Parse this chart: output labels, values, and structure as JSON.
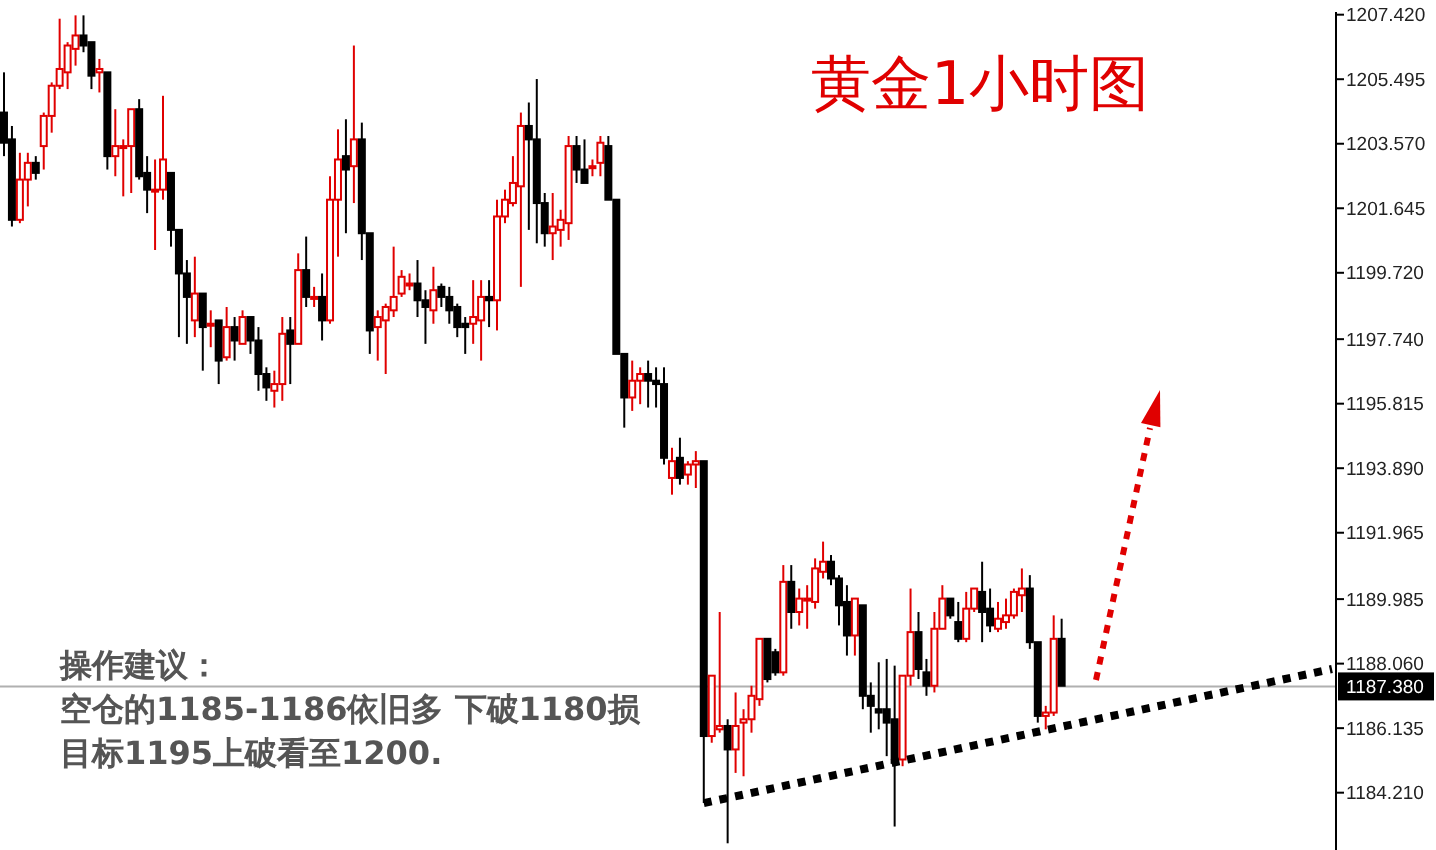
{
  "chart_data": {
    "type": "candlestick",
    "title": "黄金1小时图",
    "annotations": [
      "操作建议：",
      "空仓的1185-1186依旧多  下破1180损",
      "目标1195上破看至1200."
    ],
    "categories": [
      null,
      null,
      null,
      null,
      null,
      null,
      null,
      null,
      null,
      null,
      null,
      null,
      null,
      null,
      null,
      null,
      null,
      null,
      null,
      null,
      null,
      null,
      null,
      null,
      null,
      null,
      null,
      null,
      null,
      null,
      null,
      null,
      null,
      null,
      null,
      null,
      null,
      null,
      null,
      null,
      null,
      null,
      null,
      null,
      null,
      null,
      null,
      null,
      null,
      null,
      null,
      null,
      null,
      null,
      null,
      null,
      null,
      null,
      null,
      null,
      null,
      null,
      null,
      null,
      null,
      null,
      null,
      null,
      null,
      null,
      null,
      null,
      null,
      null,
      null,
      null,
      null,
      null,
      null,
      null,
      null,
      null,
      null,
      null,
      null,
      null,
      null,
      null,
      null,
      null,
      null,
      null,
      null,
      null,
      null,
      null,
      null,
      null,
      null,
      null,
      null,
      null,
      null,
      null,
      null,
      null,
      null,
      null,
      null,
      null,
      null,
      null,
      null,
      null,
      null,
      null,
      null,
      null,
      null,
      null,
      null,
      null,
      null,
      null,
      null,
      null,
      null,
      null,
      null,
      null,
      null,
      null,
      null,
      null,
      null,
      null,
      null,
      null,
      null,
      null,
      null,
      null,
      null,
      null,
      null,
      null,
      null,
      null,
      null,
      null,
      null,
      null,
      null,
      null,
      null,
      null,
      null,
      null,
      null,
      null,
      null,
      null,
      null,
      null,
      null,
      null,
      null,
      null
    ],
    "colors": [
      "#000000",
      "#000000",
      "#e00000",
      "#e00000",
      "#000000",
      "#e00000",
      "#e00000",
      "#e00000",
      "#e00000",
      "#e00000",
      "#000000",
      "#000000",
      "#e00000",
      "#000000",
      "#e00000",
      "#e00000",
      "#e00000",
      "#000000",
      "#000000",
      "#e00000",
      "#e00000",
      "#000000",
      "#000000",
      "#000000",
      "#e00000",
      "#000000",
      "#e00000",
      "#000000",
      "#e00000",
      "#000000",
      "#e00000",
      "#000000",
      "#000000",
      "#000000",
      "#e00000",
      "#e00000",
      "#000000",
      "#e00000",
      "#000000",
      "#e00000",
      "#000000",
      "#e00000",
      "#e00000",
      "#000000",
      "#e00000",
      "#000000",
      "#000000",
      "#e00000",
      "#e00000",
      "#e00000",
      "#e00000",
      "#e00000",
      "#000000",
      "#000000",
      "#e00000",
      "#000000",
      "#000000",
      "#000000",
      "#000000",
      "#e00000",
      "#e00000",
      "#000000",
      "#e00000",
      "#e00000",
      "#e00000",
      "#e00000",
      "#000000",
      "#000000",
      "#000000",
      "#e00000",
      "#e00000",
      "#e00000",
      "#000000",
      "#000000",
      "#e00000",
      "#e00000",
      "#000000",
      "#000000",
      "#000000",
      "#e00000",
      "#e00000",
      "#000000",
      "#000000",
      "#000000",
      "#e00000",
      "#000000",
      "#e00000",
      "#e00000",
      "#000000",
      "#e00000",
      "#e00000",
      "#000000",
      "#e00000",
      "#e00000",
      "#e00000",
      "#e00000",
      "#000000",
      "#000000",
      "#e00000",
      "#000000",
      "#e00000",
      "#e00000",
      "#e00000",
      "#e00000",
      "#000000",
      "#000000",
      "#000000",
      "#e00000",
      "#000000",
      "#000000",
      "#000000",
      "#000000",
      "#000000",
      "#e00000",
      "#e00000",
      "#000000",
      "#000000",
      "#e00000",
      "#e00000",
      "#000000",
      "#000000",
      "#e00000",
      "#e00000",
      "#000000",
      "#000000",
      "#e00000",
      "#e00000",
      "#e00000",
      "#e00000",
      "#000000",
      "#000000",
      "#e00000",
      "#e00000",
      "#000000",
      null,
      null,
      null,
      null,
      null,
      null,
      null,
      null,
      null,
      null,
      null,
      null,
      null,
      null,
      null,
      null,
      null,
      null,
      null,
      null,
      null,
      null,
      null,
      null,
      null,
      null,
      null,
      null,
      null,
      null,
      null,
      null,
      null,
      null
    ],
    "ohlc": [
      [
        1204.5,
        1205.7,
        1203.2,
        1203.6
      ],
      [
        1203.7,
        1204.1,
        1201.1,
        1201.3
      ],
      [
        1201.3,
        1203.3,
        1201.2,
        1202.5
      ],
      [
        1202.5,
        1203.3,
        1201.7,
        1203.0
      ],
      [
        1203.0,
        1203.2,
        1202.5,
        1202.7
      ],
      [
        1203.5,
        1204.5,
        1202.8,
        1204.4
      ],
      [
        1204.4,
        1205.4,
        1203.9,
        1205.3
      ],
      [
        1205.3,
        1207.3,
        1205.2,
        1205.8
      ],
      [
        1205.7,
        1206.6,
        1205.2,
        1206.5
      ],
      [
        1206.4,
        1207.4,
        1205.9,
        1206.8
      ],
      [
        1206.8,
        1207.4,
        1206.3,
        1206.5
      ],
      [
        1206.6,
        1206.6,
        1205.2,
        1205.6
      ],
      [
        1205.7,
        1206.1,
        1205.1,
        1205.8
      ],
      [
        1205.7,
        1205.7,
        1202.8,
        1203.2
      ],
      [
        1203.2,
        1204.6,
        1202.6,
        1203.5
      ],
      [
        1203.5,
        1203.7,
        1202.0,
        1203.5
      ],
      [
        1203.5,
        1204.6,
        1202.1,
        1204.6
      ],
      [
        1204.6,
        1204.9,
        1202.5,
        1202.6
      ],
      [
        1202.7,
        1203.2,
        1201.5,
        1202.2
      ],
      [
        1202.2,
        1203.1,
        1200.4,
        1202.2
      ],
      [
        1202.2,
        1205.0,
        1201.9,
        1203.1
      ],
      [
        1202.7,
        1202.7,
        1200.5,
        1201.0
      ],
      [
        1201.0,
        1201.0,
        1197.8,
        1199.7
      ],
      [
        1199.7,
        1200.1,
        1197.6,
        1199.0
      ],
      [
        1198.3,
        1200.2,
        1197.8,
        1199.1
      ],
      [
        1199.1,
        1199.1,
        1196.8,
        1198.1
      ],
      [
        1198.2,
        1198.6,
        1197.5,
        1198.2
      ],
      [
        1198.3,
        1198.3,
        1196.4,
        1197.1
      ],
      [
        1197.2,
        1198.7,
        1197.1,
        1198.1
      ],
      [
        1198.1,
        1198.4,
        1197.1,
        1197.7
      ],
      [
        1197.6,
        1198.6,
        1197.6,
        1198.4
      ],
      [
        1198.4,
        1198.4,
        1197.3,
        1197.7
      ],
      [
        1197.7,
        1198.1,
        1196.2,
        1196.7
      ],
      [
        1196.7,
        1196.9,
        1195.9,
        1196.3
      ],
      [
        1196.2,
        1196.8,
        1195.7,
        1196.4
      ],
      [
        1196.4,
        1198.4,
        1195.9,
        1197.9
      ],
      [
        1198.0,
        1198.4,
        1196.4,
        1197.6
      ],
      [
        1197.6,
        1200.3,
        1197.6,
        1199.8
      ],
      [
        1199.8,
        1200.8,
        1198.7,
        1199.0
      ],
      [
        1199.0,
        1199.3,
        1198.7,
        1199.0
      ],
      [
        1199.0,
        1199.7,
        1197.7,
        1198.3
      ],
      [
        1198.3,
        1202.6,
        1198.2,
        1201.9
      ],
      [
        1201.9,
        1204.0,
        1200.2,
        1203.1
      ],
      [
        1203.2,
        1204.3,
        1200.9,
        1202.8
      ],
      [
        1202.9,
        1206.5,
        1201.8,
        1203.7
      ],
      [
        1203.7,
        1204.2,
        1200.1,
        1200.9
      ],
      [
        1200.9,
        1200.9,
        1197.3,
        1198.0
      ],
      [
        1198.1,
        1198.6,
        1197.1,
        1198.4
      ],
      [
        1198.3,
        1198.8,
        1196.7,
        1198.7
      ],
      [
        1198.6,
        1200.5,
        1198.4,
        1199.0
      ],
      [
        1199.1,
        1199.8,
        1199.0,
        1199.6
      ],
      [
        1199.4,
        1199.7,
        1199.2,
        1199.4
      ],
      [
        1199.4,
        1200.1,
        1198.4,
        1198.9
      ],
      [
        1198.9,
        1199.2,
        1197.6,
        1198.7
      ],
      [
        1198.6,
        1199.9,
        1198.2,
        1199.2
      ],
      [
        1199.3,
        1199.4,
        1198.7,
        1199.0
      ],
      [
        1199.0,
        1199.3,
        1198.2,
        1198.6
      ],
      [
        1198.7,
        1198.8,
        1197.8,
        1198.1
      ],
      [
        1198.2,
        1198.4,
        1197.3,
        1198.1
      ],
      [
        1198.2,
        1199.5,
        1197.6,
        1198.4
      ],
      [
        1198.3,
        1199.5,
        1197.1,
        1199.0
      ],
      [
        1199.0,
        1199.5,
        1198.1,
        1198.9
      ],
      [
        1198.9,
        1201.9,
        1198.0,
        1201.4
      ],
      [
        1201.4,
        1202.2,
        1201.2,
        1201.9
      ],
      [
        1201.8,
        1203.2,
        1201.7,
        1202.4
      ],
      [
        1202.3,
        1204.5,
        1199.3,
        1204.1
      ],
      [
        1204.1,
        1204.8,
        1201.0,
        1203.7
      ],
      [
        1203.7,
        1205.5,
        1200.6,
        1201.8
      ],
      [
        1201.8,
        1202.1,
        1200.5,
        1200.9
      ],
      [
        1200.9,
        1202.1,
        1200.1,
        1201.1
      ],
      [
        1201.0,
        1201.6,
        1200.5,
        1201.3
      ],
      [
        1201.2,
        1203.8,
        1200.7,
        1203.5
      ],
      [
        1203.5,
        1203.8,
        1202.4,
        1202.8
      ],
      [
        1202.8,
        1203.7,
        1202.4,
        1202.4
      ],
      [
        1202.9,
        1203.1,
        1202.6,
        1202.9
      ],
      [
        1203.0,
        1203.8,
        1202.6,
        1203.6
      ],
      [
        1203.5,
        1203.8,
        1201.9,
        1201.9
      ],
      [
        1201.9,
        1201.9,
        1197.3,
        1197.3
      ],
      [
        1197.3,
        1197.3,
        1195.1,
        1196.0
      ],
      [
        1196.0,
        1197.1,
        1195.6,
        1196.5
      ],
      [
        1196.5,
        1196.9,
        1195.8,
        1196.7
      ],
      [
        1196.7,
        1197.1,
        1195.7,
        1196.5
      ],
      [
        1196.5,
        1196.9,
        1195.7,
        1196.4
      ],
      [
        1196.4,
        1196.9,
        1194.0,
        1194.2
      ],
      [
        1193.6,
        1194.5,
        1193.1,
        1194.1
      ],
      [
        1194.2,
        1194.8,
        1193.4,
        1193.6
      ],
      [
        1193.7,
        1194.1,
        1193.4,
        1194.0
      ],
      [
        1194.0,
        1194.4,
        1193.3,
        1194.1
      ],
      [
        1194.1,
        1194.1,
        1183.9,
        1185.9
      ],
      [
        1185.9,
        1187.7,
        1185.7,
        1187.7
      ],
      [
        1186.1,
        1189.6,
        1186.0,
        1186.2
      ],
      [
        1186.2,
        1186.4,
        1182.7,
        1185.5
      ],
      [
        1185.5,
        1187.2,
        1184.8,
        1186.2
      ],
      [
        1186.3,
        1186.7,
        1184.7,
        1186.4
      ],
      [
        1186.4,
        1187.4,
        1186.0,
        1187.1
      ],
      [
        1187.0,
        1188.8,
        1186.8,
        1188.8
      ],
      [
        1188.8,
        1188.8,
        1187.5,
        1187.6
      ],
      [
        1188.4,
        1188.5,
        1187.7,
        1187.8
      ],
      [
        1187.8,
        1191.0,
        1187.7,
        1190.5
      ],
      [
        1190.5,
        1191.0,
        1189.1,
        1189.6
      ],
      [
        1189.6,
        1190.3,
        1189.2,
        1190.0
      ],
      [
        1190.0,
        1190.4,
        1189.1,
        1190.0
      ],
      [
        1189.9,
        1191.2,
        1189.7,
        1190.9
      ],
      [
        1190.8,
        1191.7,
        1190.6,
        1191.1
      ],
      [
        1191.1,
        1191.3,
        1190.4,
        1190.6
      ],
      [
        1190.6,
        1190.7,
        1189.2,
        1189.8
      ],
      [
        1189.9,
        1190.4,
        1188.3,
        1188.9
      ],
      [
        1188.9,
        1190.0,
        1188.3,
        1190.0
      ],
      [
        1189.8,
        1189.8,
        1186.7,
        1187.1
      ],
      [
        1187.1,
        1187.5,
        1186.0,
        1186.8
      ],
      [
        1186.7,
        1188.1,
        1186.1,
        1186.6
      ],
      [
        1186.7,
        1188.2,
        1185.3,
        1186.3
      ],
      [
        1186.4,
        1188.0,
        1183.2,
        1185.1
      ],
      [
        1185.2,
        1187.7,
        1185.0,
        1187.7
      ],
      [
        1187.7,
        1190.3,
        1187.4,
        1189.0
      ],
      [
        1189.0,
        1189.6,
        1187.6,
        1187.9
      ],
      [
        1187.8,
        1188.2,
        1187.1,
        1187.4
      ],
      [
        1187.4,
        1189.6,
        1187.2,
        1189.1
      ],
      [
        1189.1,
        1190.4,
        1189.1,
        1190.0
      ],
      [
        1190.0,
        1190.0,
        1189.4,
        1189.5
      ],
      [
        1189.3,
        1189.9,
        1188.7,
        1188.8
      ],
      [
        1188.8,
        1190.2,
        1188.7,
        1189.7
      ],
      [
        1189.7,
        1190.3,
        1189.6,
        1190.3
      ],
      [
        1190.2,
        1191.1,
        1188.7,
        1189.6
      ],
      [
        1189.7,
        1190.3,
        1189.0,
        1189.2
      ],
      [
        1189.1,
        1189.9,
        1189.0,
        1189.4
      ],
      [
        1189.3,
        1190.0,
        1189.1,
        1189.5
      ],
      [
        1189.5,
        1190.3,
        1189.4,
        1190.2
      ],
      [
        1190.1,
        1190.9,
        1189.6,
        1190.3
      ],
      [
        1190.3,
        1190.7,
        1188.5,
        1188.7
      ],
      [
        1188.7,
        1188.7,
        1186.3,
        1186.5
      ],
      [
        1186.5,
        1186.8,
        1186.1,
        1186.6
      ],
      [
        1186.6,
        1189.5,
        1186.5,
        1188.8
      ],
      [
        1188.8,
        1189.4,
        1187.4,
        1187.4
      ],
      null,
      null,
      null,
      null,
      null,
      null,
      null,
      null,
      null,
      null,
      null,
      null,
      null,
      null,
      null,
      null,
      null,
      null,
      null,
      null,
      null,
      null,
      null,
      null,
      null,
      null,
      null,
      null,
      null,
      null,
      null,
      null,
      null,
      null
    ],
    "series": [
      {
        "type": "line",
        "color": "#000000",
        "line_style": "dotted",
        "values": [
          null,
          null,
          null,
          null,
          null,
          null,
          null,
          null,
          null,
          null,
          null,
          null,
          null,
          null,
          null,
          null,
          null,
          null,
          null,
          null,
          null,
          null,
          null,
          null,
          null,
          null,
          null,
          null,
          null,
          null,
          null,
          null,
          null,
          null,
          null,
          null,
          null,
          null,
          null,
          null,
          null,
          null,
          null,
          null,
          null,
          null,
          null,
          null,
          null,
          null,
          null,
          null,
          null,
          null,
          null,
          null,
          null,
          null,
          null,
          null,
          null,
          null,
          null,
          null,
          null,
          null,
          null,
          null,
          null,
          null,
          null,
          null,
          null,
          null,
          null,
          null,
          null,
          null,
          null,
          null,
          null,
          null,
          null,
          null,
          null,
          null,
          null,
          null,
          1183.9,
          null,
          null,
          null,
          null,
          null,
          null,
          null,
          null,
          null,
          null,
          null,
          null,
          null,
          null,
          null,
          null,
          null,
          null,
          null,
          null,
          null,
          null,
          null,
          null,
          null,
          null,
          null,
          null,
          null,
          null,
          null,
          null,
          null,
          null,
          null,
          null,
          null,
          null,
          null,
          null,
          null,
          null,
          null,
          null,
          null,
          null,
          null,
          null,
          null,
          null,
          null,
          null,
          null,
          null,
          null,
          null,
          null,
          null,
          null,
          null,
          null,
          null,
          null,
          null,
          null,
          null,
          null,
          null,
          null,
          null,
          null,
          null,
          null,
          null,
          null,
          null,
          null,
          null,
          1187.9
        ]
      }
    ],
    "ref_lines": [
      {
        "axis": "y",
        "value": 1187.38,
        "label": "1187.380",
        "color": "#b0b0b0"
      }
    ],
    "ylim": [
      1182.5,
      1207.5
    ],
    "yticks": [
      {
        "value": 1207.42,
        "label": "1207.420"
      },
      {
        "value": 1205.495,
        "label": "1205.495"
      },
      {
        "value": 1203.57,
        "label": "1203.570"
      },
      {
        "value": 1201.645,
        "label": "1201.645"
      },
      {
        "value": 1199.72,
        "label": "1199.720"
      },
      {
        "value": 1197.74,
        "label": "1197.740"
      },
      {
        "value": 1195.815,
        "label": "1195.815"
      },
      {
        "value": 1193.89,
        "label": "1193.890"
      },
      {
        "value": 1191.965,
        "label": "1191.965"
      },
      {
        "value": 1189.985,
        "label": "1189.985"
      },
      {
        "value": 1188.06,
        "label": "1188.060"
      },
      {
        "value": 1186.135,
        "label": "1186.135"
      },
      {
        "value": 1184.21,
        "label": "1184.210"
      }
    ],
    "tick_labels": "y",
    "grid": false
  }
}
